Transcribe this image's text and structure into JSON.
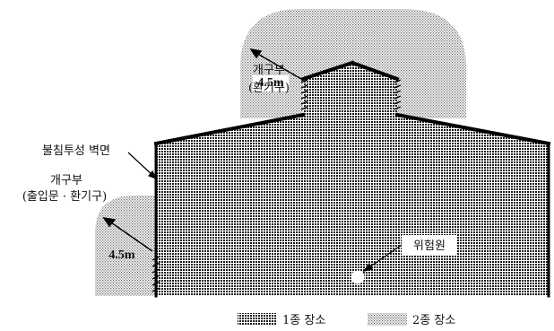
{
  "labels": {
    "opening_top_line1": "개구부",
    "opening_top_line2": "(환기구)",
    "dim_top": "4.5m",
    "wall_label": "불침투성 벽면",
    "opening_left_line1": "개구부",
    "opening_left_line2": "(출입문 · 환기구)",
    "dim_left": "4.5m",
    "source_label": "위험원"
  },
  "legend": [
    {
      "label": "1종 장소",
      "pattern": "zone1-pattern"
    },
    {
      "label": "2종 장소",
      "pattern": "zone2-pattern"
    }
  ],
  "colors": {
    "zone1_dot": "#1a1a1a",
    "zone2_dot": "#7a7a7a",
    "outline": "#000000",
    "background": "#ffffff"
  }
}
